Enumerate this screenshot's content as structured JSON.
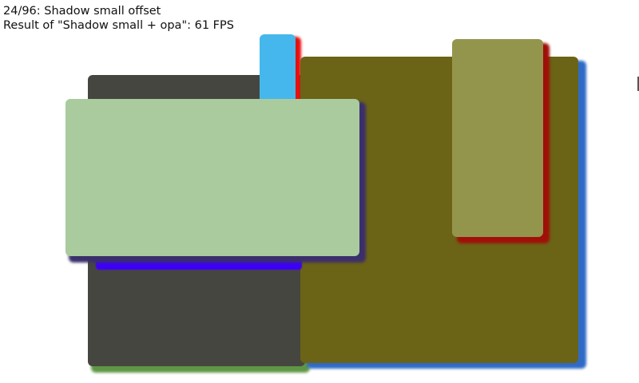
{
  "header": {
    "scene_title": "24/96: Shadow small offset",
    "result_text": "Result of \"Shadow small + opa\": 61 FPS"
  },
  "colors": {
    "dark_box": "#464640",
    "dark_box_shadow": "#5e9645",
    "blue_box": "#46b7ec",
    "blue_box_shadow": "#e51010",
    "olive_box": "#6b6316",
    "olive_box_shadow": "#2f6bc6",
    "light_olive_box": "#94954c",
    "light_olive_box_shadow": "#a01008",
    "green_box": "#aacb9e",
    "green_box_shadow": "#3b2f6b",
    "violet_band": "#3c00f8",
    "edge_box": "#555555"
  }
}
